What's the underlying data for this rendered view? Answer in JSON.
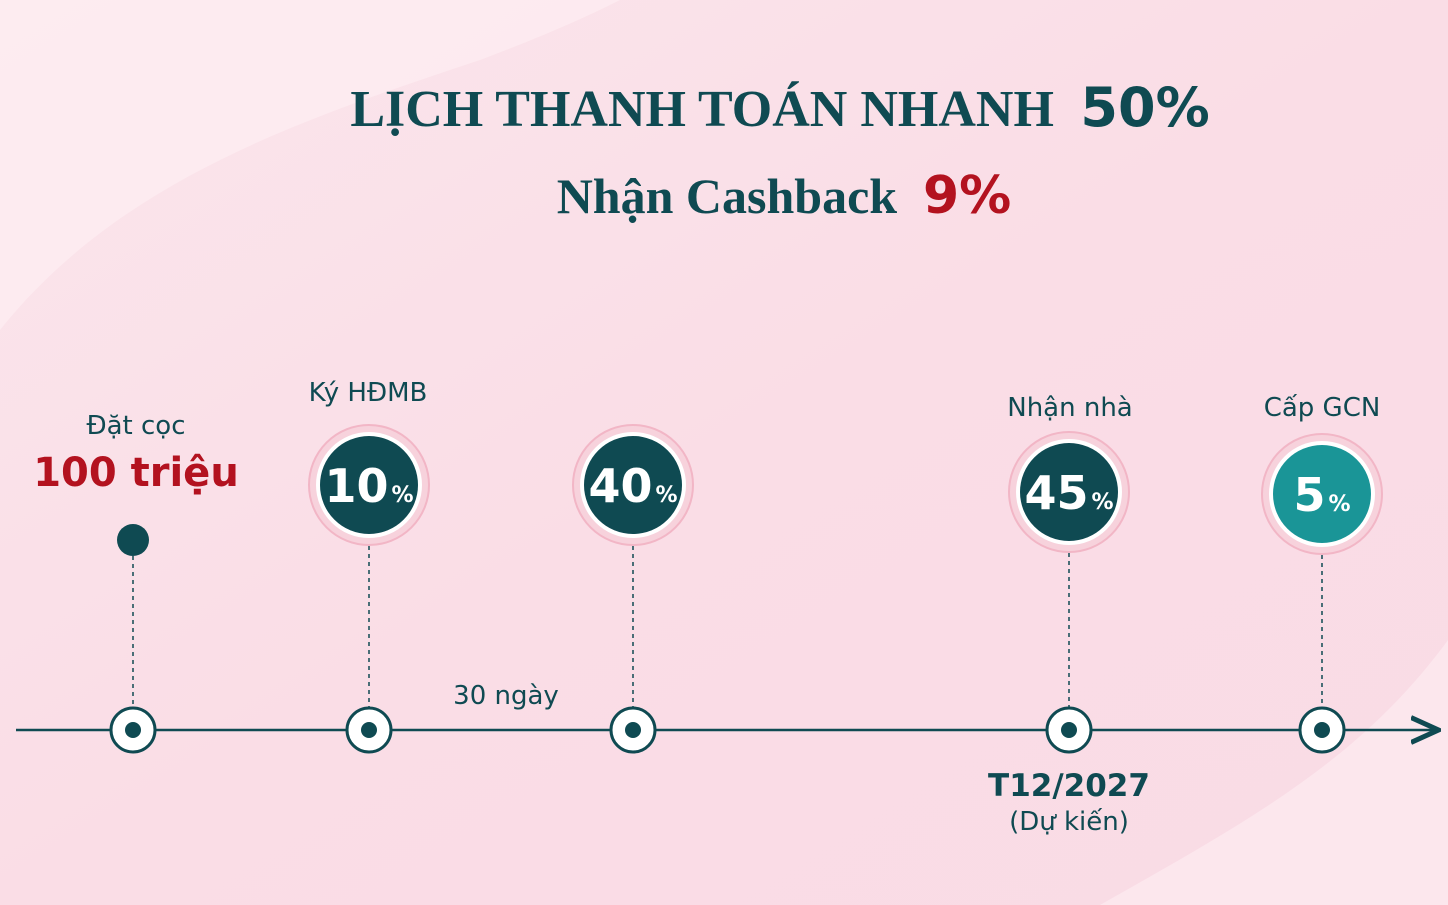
{
  "header": {
    "title": "LỊCH THANH TOÁN NHANH",
    "title_highlight": "50%",
    "subtitle": "Nhận Cashback",
    "subtitle_highlight": "9%"
  },
  "milestones": [
    {
      "label": "Đặt cọc",
      "amount": "100 triệu"
    },
    {
      "label": "Ký HĐMB",
      "percent": "10",
      "unit": "%"
    },
    {
      "percent": "40",
      "unit": "%"
    },
    {
      "label": "Nhận nhà",
      "percent": "45",
      "unit": "%",
      "date": "T12/2027",
      "note": "(Dự kiến)"
    },
    {
      "label": "Cấp GCN",
      "percent": "5",
      "unit": "%"
    }
  ],
  "interval": "30 ngày"
}
